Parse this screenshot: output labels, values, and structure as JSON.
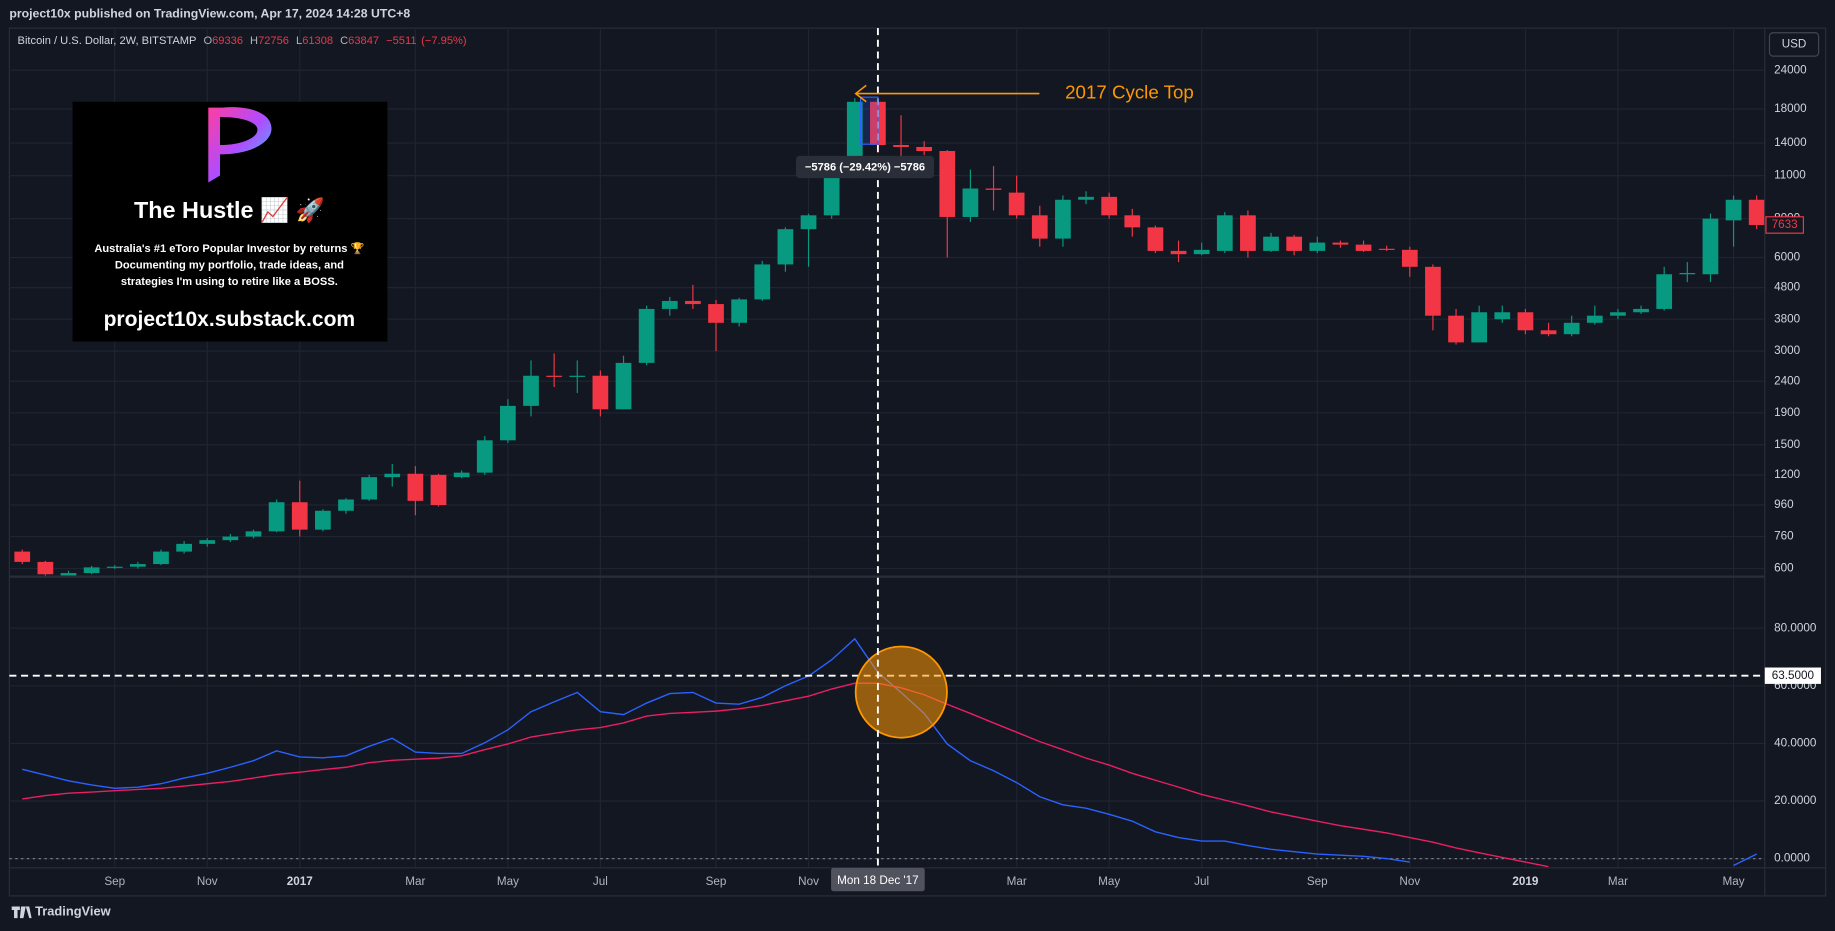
{
  "header": {
    "text": "project10x published on TradingView.com, Apr 17, 2024 14:28 UTC+8"
  },
  "footer": {
    "brand": "TradingView"
  },
  "promo": {
    "title": "The Hustle 📈 🚀",
    "lines": [
      "Australia's #1 eToro Popular Investor by returns 🏆",
      "Documenting my portfolio, trade ideas, and",
      "strategies I'm using to retire like a BOSS."
    ],
    "url": "project10x.substack.com"
  },
  "chart_data": [
    {
      "type": "candlestick",
      "title": "Bitcoin / U.S. Dollar, 2W, BITSTAMP",
      "quote": [
        {
          "key": "O",
          "value": 69336
        },
        {
          "key": "H",
          "value": 72756
        },
        {
          "key": "L",
          "value": 61308
        },
        {
          "key": "C",
          "value": 63847
        }
      ],
      "change": {
        "value": -5511,
        "label": "−5511"
      },
      "change_pct": {
        "value": -7.95,
        "label": "(−7.95%)"
      },
      "currency": "USD",
      "log_scale": true,
      "grid": true,
      "up_color": "#089981",
      "down_color": "#f23645",
      "xlim": [
        -0.557,
        75.35
      ],
      "xticks": [
        {
          "value": 4,
          "label": "Sep"
        },
        {
          "value": 8,
          "label": "Nov"
        },
        {
          "value": 12,
          "label": "2017"
        },
        {
          "value": 17,
          "label": "Mar"
        },
        {
          "value": 21,
          "label": "May"
        },
        {
          "value": 25,
          "label": "Jul"
        },
        {
          "value": 30,
          "label": "Sep"
        },
        {
          "value": 34,
          "label": "Nov"
        },
        {
          "value": 43,
          "label": "Mar"
        },
        {
          "value": 47,
          "label": "May"
        },
        {
          "value": 51,
          "label": "Jul"
        },
        {
          "value": 56,
          "label": "Sep"
        },
        {
          "value": 60,
          "label": "Nov"
        },
        {
          "value": 65,
          "label": "2019"
        },
        {
          "value": 69,
          "label": "Mar"
        },
        {
          "value": 74,
          "label": "May"
        }
      ],
      "ylim": [
        565,
        32800
      ],
      "yticks": [
        600,
        760,
        960,
        1200,
        1500,
        1900,
        2400,
        3000,
        3800,
        4800,
        6000,
        8000,
        11000,
        14000,
        18000,
        24000
      ],
      "open": [
        680,
        630,
        570,
        580,
        605,
        608,
        620,
        680,
        720,
        740,
        760,
        790,
        980,
        800,
        920,
        1000,
        1180,
        1210,
        1200,
        1180,
        1220,
        1550,
        2000,
        2500,
        2480,
        2500,
        1950,
        2750,
        4100,
        4350,
        4250,
        3700,
        4400,
        5700,
        7400,
        8200,
        11000,
        19000,
        13800,
        13600,
        13200,
        8100,
        10000,
        9700,
        8200,
        6900,
        9200,
        9400,
        8200,
        7500,
        6300,
        6150,
        6300,
        8200,
        6300,
        7000,
        6300,
        6700,
        6600,
        6400,
        6350,
        5600,
        3900,
        3200,
        3800,
        4000,
        3500,
        3400,
        3700,
        3900,
        4000,
        4100,
        5300,
        5300,
        7900,
        9200
      ],
      "high": [
        690,
        635,
        590,
        612,
        615,
        630,
        690,
        735,
        750,
        775,
        800,
        1000,
        1150,
        930,
        1010,
        1200,
        1300,
        1280,
        1210,
        1240,
        1600,
        2100,
        2800,
        2950,
        2800,
        2600,
        2900,
        4200,
        4480,
        4900,
        4380,
        4450,
        5850,
        7500,
        8300,
        11500,
        19500,
        19666,
        17200,
        14200,
        13300,
        11500,
        11800,
        11000,
        8800,
        9500,
        9800,
        9700,
        8600,
        7600,
        6800,
        6700,
        8400,
        8500,
        7200,
        7100,
        7000,
        6800,
        6800,
        6550,
        6500,
        5700,
        4100,
        4200,
        4200,
        4100,
        3700,
        3900,
        4200,
        4100,
        4200,
        5600,
        5800,
        8300,
        9500,
        9500
      ],
      "low": [
        620,
        560,
        565,
        575,
        598,
        600,
        615,
        670,
        705,
        730,
        750,
        785,
        760,
        790,
        900,
        990,
        1100,
        890,
        950,
        1170,
        1200,
        1520,
        1850,
        2300,
        2200,
        1850,
        1950,
        2700,
        3900,
        4100,
        3000,
        3600,
        4350,
        5400,
        5600,
        8000,
        10800,
        13000,
        11000,
        12800,
        6000,
        7800,
        8500,
        8000,
        6500,
        6500,
        8900,
        8000,
        7000,
        6200,
        5800,
        6100,
        6200,
        6000,
        6250,
        6100,
        6200,
        6450,
        6250,
        6300,
        5200,
        3500,
        3150,
        3200,
        3700,
        3400,
        3350,
        3350,
        3650,
        3800,
        3950,
        4050,
        5000,
        5000,
        6500,
        7400
      ],
      "close": [
        630,
        575,
        580,
        605,
        608,
        620,
        680,
        720,
        740,
        760,
        790,
        980,
        800,
        920,
        1000,
        1180,
        1210,
        990,
        960,
        1220,
        1550,
        2000,
        2500,
        2480,
        2500,
        1950,
        2750,
        4100,
        4350,
        4250,
        3700,
        4400,
        5700,
        7400,
        8200,
        11000,
        19000,
        13800,
        13600,
        13200,
        8100,
        10000,
        9900,
        8200,
        6900,
        9200,
        9400,
        8200,
        7500,
        6300,
        6150,
        6350,
        8200,
        6300,
        7000,
        6300,
        6700,
        6600,
        6300,
        6350,
        5600,
        3900,
        3200,
        4000,
        4000,
        3500,
        3400,
        3700,
        3900,
        4000,
        4100,
        5300,
        5350,
        8000,
        9200,
        7633
      ],
      "crosshair": {
        "value": 37,
        "label": "Mon 18 Dec '17"
      },
      "annotation": {
        "text": "2017 Cycle Top",
        "color": "#ff9800"
      },
      "measure": {
        "from": 19666,
        "to": 13880,
        "label": "−5786 (−29.42%) −5786"
      }
    },
    {
      "type": "line",
      "grid": true,
      "ylim": [
        -3.2,
        97.9
      ],
      "yticks": [
        {
          "value": 0,
          "label": "0.0000"
        },
        {
          "value": 20,
          "label": "20.0000"
        },
        {
          "value": 40,
          "label": "40.0000"
        },
        {
          "value": 60,
          "label": "60.0000"
        },
        {
          "value": 80,
          "label": "80.0000"
        }
      ],
      "hline": {
        "value": 63.5,
        "label": "63.5000"
      },
      "series": [
        {
          "color": "#2962ff",
          "values": [
            31,
            29,
            27,
            25.6,
            24.4,
            24.8,
            26,
            28,
            29.6,
            31.7,
            34,
            37.4,
            35.3,
            35,
            35.7,
            39,
            41.8,
            37,
            36.5,
            36.5,
            40.2,
            44.7,
            51,
            54.4,
            57.7,
            51,
            50,
            54,
            57.3,
            57.7,
            54,
            53.6,
            56,
            60,
            63.4,
            69,
            76.3,
            64.6,
            57.7,
            50.4,
            39.8,
            34,
            30.5,
            26.4,
            21.5,
            18.7,
            17.5,
            15.4,
            13,
            9.3,
            7.3,
            6.1,
            6.1,
            4.5,
            3.2,
            2.4,
            1.6,
            1.2,
            0.8,
            0,
            -1.2,
            null,
            null,
            null,
            null,
            null,
            null,
            null,
            null,
            null,
            null,
            null,
            null,
            null,
            -2.4,
            1.6
          ]
        },
        {
          "color": "#e91e63",
          "values": [
            20.7,
            21.9,
            22.7,
            23.1,
            23.6,
            24,
            24.4,
            25.2,
            26,
            26.8,
            28,
            29.2,
            30,
            30.9,
            31.7,
            33.3,
            34.1,
            34.5,
            34.9,
            35.7,
            37.8,
            39.8,
            42.2,
            43.5,
            44.7,
            45.5,
            47.1,
            49.5,
            50.4,
            50.8,
            51.2,
            52,
            53.2,
            54.8,
            56.4,
            58.9,
            60.9,
            60.9,
            59.3,
            56.9,
            53.6,
            50.4,
            47.1,
            43.9,
            40.6,
            37.8,
            34.9,
            32.5,
            29.6,
            27.2,
            24.8,
            22.3,
            20.3,
            18.3,
            16.2,
            14.6,
            13,
            11.4,
            10.2,
            8.9,
            7.3,
            5.7,
            3.7,
            2,
            0.4,
            -1.2,
            -2.8,
            null,
            null,
            null,
            null,
            null,
            null,
            null,
            null,
            null
          ]
        }
      ]
    }
  ]
}
